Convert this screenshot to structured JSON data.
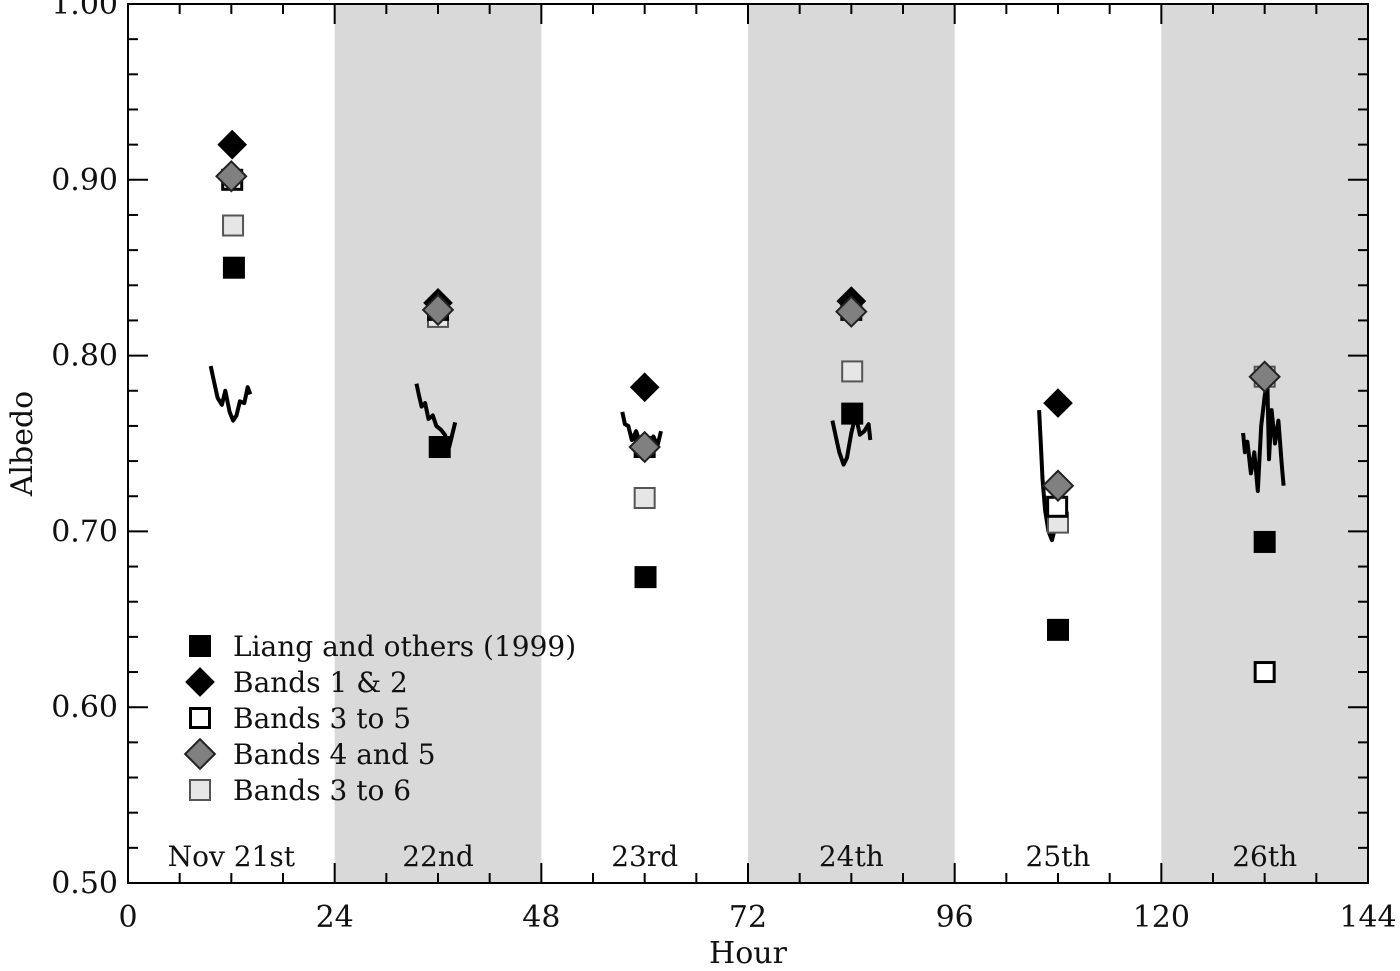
{
  "chart_data": {
    "type": "scatter",
    "title": "",
    "xlabel": "Hour",
    "ylabel": "Albedo",
    "xlim": [
      0,
      144
    ],
    "ylim": [
      0.5,
      1.0
    ],
    "xticks": [
      0,
      24,
      48,
      72,
      96,
      120,
      144
    ],
    "xtick_labels": [
      "0",
      "24",
      "48",
      "72",
      "96",
      "120",
      "144"
    ],
    "yticks": [
      0.5,
      0.6,
      0.7,
      0.8,
      0.9,
      1.0
    ],
    "ytick_labels": [
      "0.50",
      "0.60",
      "0.70",
      "0.80",
      "0.90",
      "1.00"
    ],
    "grid": false,
    "legend_position": "bottom-left",
    "shaded_bands": [
      [
        24,
        48
      ],
      [
        72,
        96
      ],
      [
        120,
        144
      ]
    ],
    "shade_color": "#d9d9d9",
    "day_labels": [
      {
        "x": 12,
        "text": "Nov 21st"
      },
      {
        "x": 36,
        "text": "22nd"
      },
      {
        "x": 60,
        "text": "23rd"
      },
      {
        "x": 84,
        "text": "24th"
      },
      {
        "x": 108,
        "text": "25th"
      },
      {
        "x": 132,
        "text": "26th"
      }
    ],
    "series": [
      {
        "name": "Liang and others (1999)",
        "marker": "square-filled",
        "color": "#000000",
        "points": [
          [
            12.3,
            0.85
          ],
          [
            36.2,
            0.748
          ],
          [
            60.1,
            0.674
          ],
          [
            84.1,
            0.767
          ],
          [
            108.0,
            0.644
          ],
          [
            132.0,
            0.694
          ]
        ]
      },
      {
        "name": "Bands 1 & 2",
        "marker": "diamond-filled",
        "color": "#000000",
        "points": [
          [
            12.1,
            0.92
          ],
          [
            36.0,
            0.83
          ],
          [
            60.0,
            0.782
          ],
          [
            84.0,
            0.831
          ],
          [
            108.0,
            0.773
          ],
          [
            132.0,
            0.788
          ]
        ]
      },
      {
        "name": "Bands 3 to 5",
        "marker": "square-open",
        "color": "#000000",
        "points": [
          [
            12.1,
            0.9
          ],
          [
            36.0,
            0.826
          ],
          [
            60.0,
            0.748
          ],
          [
            84.0,
            0.826
          ],
          [
            107.9,
            0.714
          ],
          [
            132.0,
            0.62
          ]
        ]
      },
      {
        "name": "Bands 4 and 5",
        "marker": "diamond-gray",
        "color": "#808080",
        "points": [
          [
            12.0,
            0.902
          ],
          [
            36.0,
            0.826
          ],
          [
            60.0,
            0.748
          ],
          [
            84.0,
            0.825
          ],
          [
            108.0,
            0.726
          ],
          [
            132.0,
            0.788
          ]
        ]
      },
      {
        "name": "Bands 3 to 6",
        "marker": "square-light",
        "color": "#c8c8c8",
        "points": [
          [
            12.2,
            0.874
          ],
          [
            36.0,
            0.822
          ],
          [
            60.0,
            0.719
          ],
          [
            84.1,
            0.791
          ],
          [
            108.0,
            0.705
          ],
          [
            132.0,
            0.788
          ]
        ]
      }
    ],
    "measured_traces": [
      [
        [
          9.6,
          0.794
        ],
        [
          10.0,
          0.785
        ],
        [
          10.4,
          0.776
        ],
        [
          10.9,
          0.772
        ],
        [
          11.3,
          0.78
        ],
        [
          11.8,
          0.768
        ],
        [
          12.2,
          0.763
        ],
        [
          12.6,
          0.766
        ],
        [
          13.0,
          0.774
        ],
        [
          13.5,
          0.773
        ],
        [
          13.9,
          0.782
        ],
        [
          14.2,
          0.778
        ]
      ],
      [
        [
          33.5,
          0.784
        ],
        [
          33.8,
          0.777
        ],
        [
          34.1,
          0.771
        ],
        [
          34.5,
          0.773
        ],
        [
          34.9,
          0.764
        ],
        [
          35.4,
          0.766
        ],
        [
          35.8,
          0.76
        ],
        [
          36.3,
          0.758
        ],
        [
          36.8,
          0.755
        ],
        [
          37.3,
          0.748
        ],
        [
          37.8,
          0.758
        ],
        [
          38.0,
          0.762
        ]
      ],
      [
        [
          57.4,
          0.768
        ],
        [
          57.7,
          0.761
        ],
        [
          58.1,
          0.76
        ],
        [
          58.5,
          0.752
        ],
        [
          59.0,
          0.757
        ],
        [
          59.5,
          0.75
        ],
        [
          60.0,
          0.755
        ],
        [
          60.5,
          0.748
        ],
        [
          61.0,
          0.754
        ],
        [
          61.5,
          0.749
        ],
        [
          61.9,
          0.757
        ]
      ],
      [
        [
          81.8,
          0.763
        ],
        [
          82.2,
          0.754
        ],
        [
          82.6,
          0.745
        ],
        [
          83.1,
          0.738
        ],
        [
          83.5,
          0.742
        ],
        [
          84.0,
          0.756
        ],
        [
          84.5,
          0.766
        ],
        [
          85.0,
          0.755
        ],
        [
          85.5,
          0.757
        ],
        [
          86.0,
          0.761
        ],
        [
          86.2,
          0.752
        ]
      ],
      [
        [
          105.8,
          0.769
        ],
        [
          106.0,
          0.75
        ],
        [
          106.2,
          0.73
        ],
        [
          106.5,
          0.712
        ],
        [
          106.9,
          0.7
        ],
        [
          107.3,
          0.695
        ],
        [
          107.8,
          0.705
        ],
        [
          108.2,
          0.719
        ],
        [
          108.6,
          0.726
        ],
        [
          109.0,
          0.73
        ]
      ],
      [
        [
          129.5,
          0.756
        ],
        [
          129.7,
          0.745
        ],
        [
          130.0,
          0.751
        ],
        [
          130.4,
          0.733
        ],
        [
          130.8,
          0.745
        ],
        [
          131.2,
          0.723
        ],
        [
          131.6,
          0.76
        ],
        [
          132.0,
          0.777
        ],
        [
          132.3,
          0.786
        ],
        [
          132.5,
          0.741
        ],
        [
          132.8,
          0.769
        ],
        [
          133.2,
          0.75
        ],
        [
          133.6,
          0.763
        ],
        [
          134.0,
          0.737
        ],
        [
          134.2,
          0.726
        ]
      ]
    ]
  }
}
